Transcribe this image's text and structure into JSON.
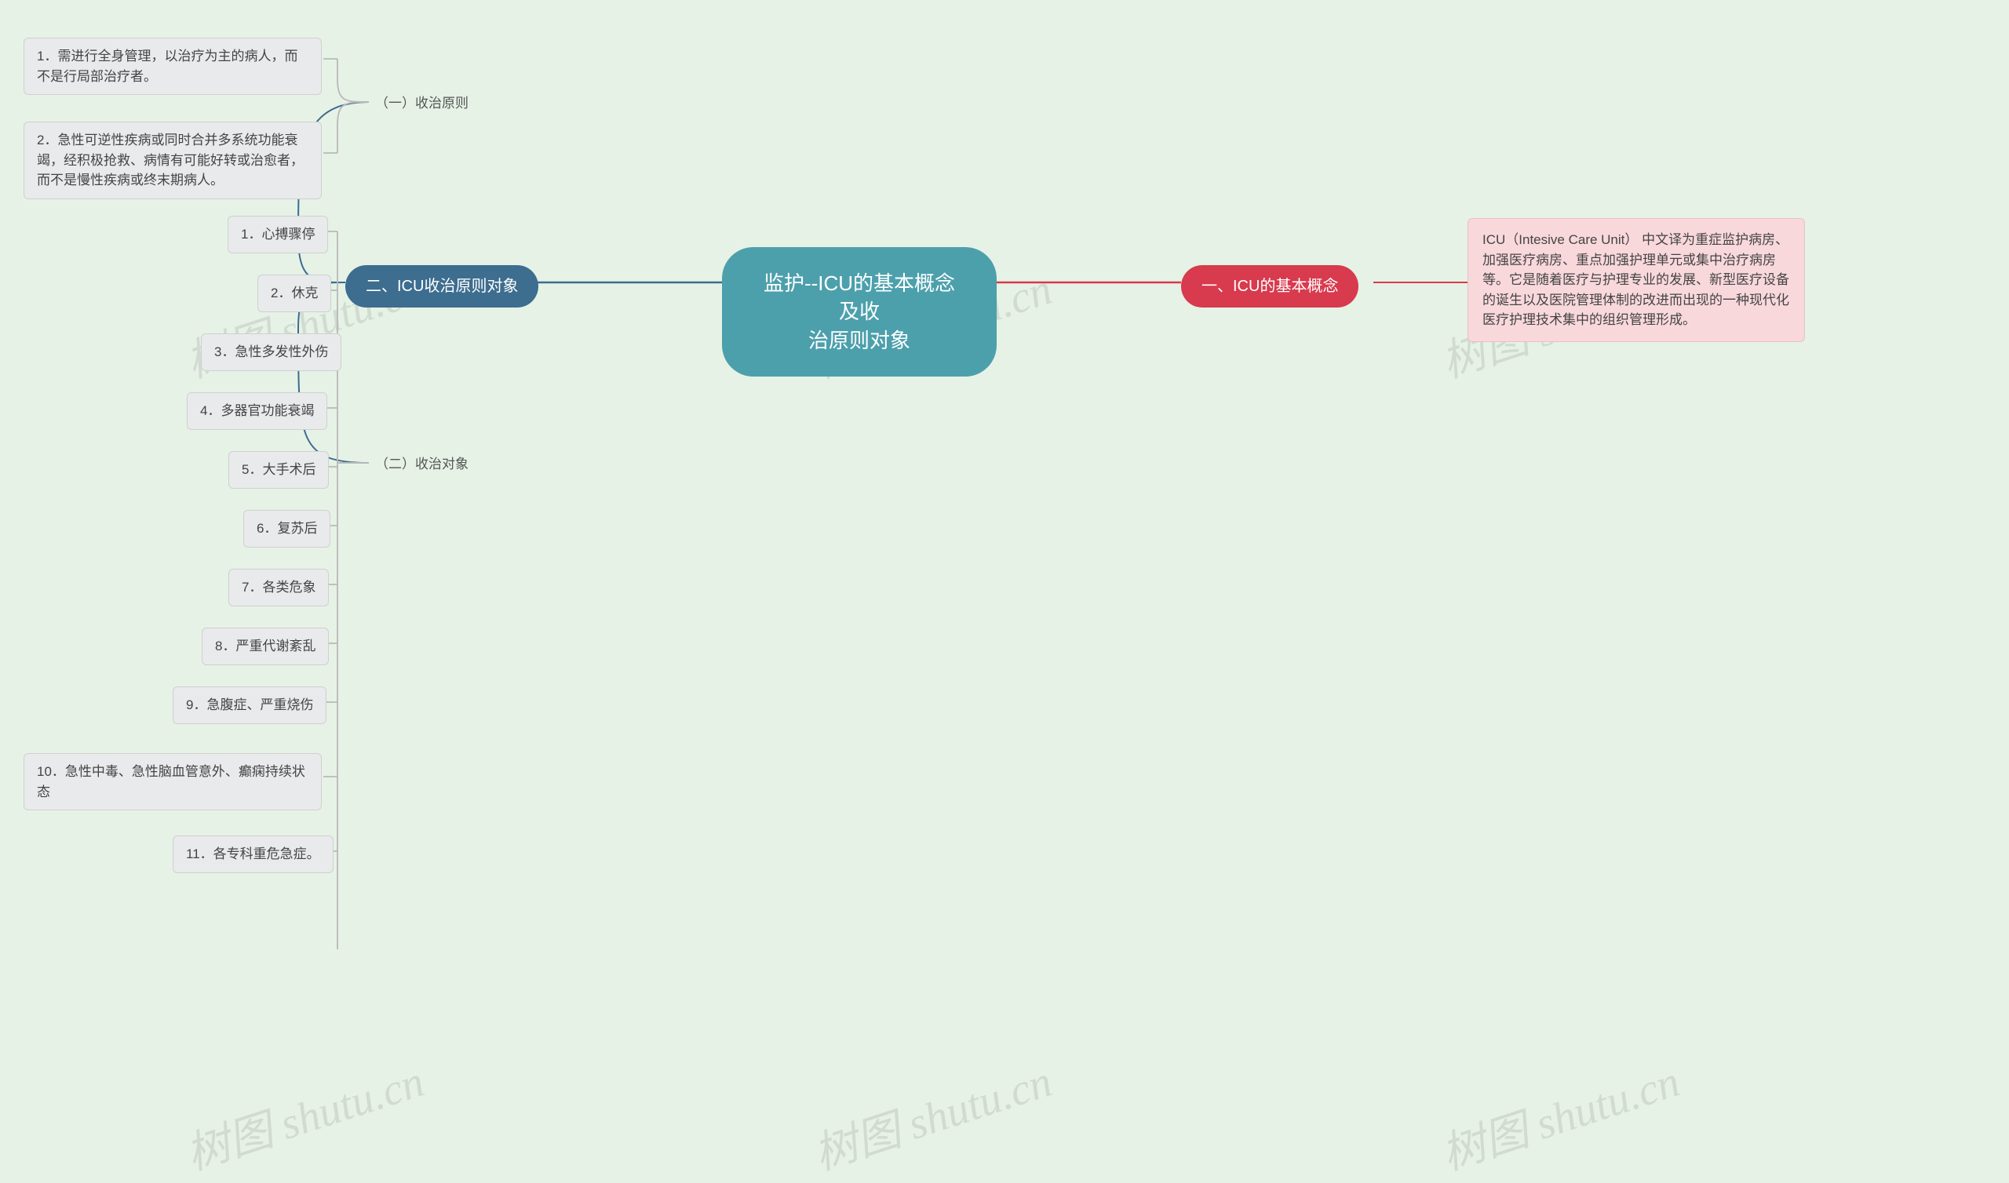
{
  "background_color": "#e6f2e6",
  "watermark_text": "树图 shutu.cn",
  "central": {
    "text": "监护--ICU的基本概念及收\n治原则对象",
    "bg": "#4ca0ac",
    "fg": "#ffffff"
  },
  "right_branch": {
    "label": "一、ICU的基本概念",
    "bg": "#d83a4e",
    "fg": "#ffffff",
    "leaf": {
      "text": "ICU（Intesive Care Unit） 中文译为重症监护病房、加强医疗病房、重点加强护理单元或集中治疗病房等。它是随着医疗与护理专业的发展、新型医疗设备的诞生以及医院管理体制的改进而出现的一种现代化医疗护理技术集中的组织管理形成。",
      "bg": "#f9d8dc"
    }
  },
  "left_branch": {
    "label": "二、ICU收治原则对象",
    "bg": "#3d6d8f",
    "fg": "#ffffff",
    "sub1": {
      "label": "（一）收治原则",
      "leaves": [
        "1．需进行全身管理，以治疗为主的病人，而不是行局部治疗者。",
        "2．急性可逆性疾病或同时合并多系统功能衰竭，经积极抢救、病情有可能好转或治愈者，而不是慢性疾病或终末期病人。"
      ]
    },
    "sub2": {
      "label": "（二）收治对象",
      "leaves": [
        "1．心搏骤停",
        "2．休克",
        "3．急性多发性外伤",
        "4．多器官功能衰竭",
        "5．大手术后",
        "6．复苏后",
        "7．各类危象",
        "8．严重代谢紊乱",
        "9．急腹症、严重烧伤",
        "10．急性中毒、急性脑血管意外、癫痫持续状态",
        "11．各专科重危急症。"
      ]
    }
  },
  "colors": {
    "connector_blue": "#3d6d8f",
    "connector_red": "#d83a4e",
    "connector_gray": "#b8b8b8",
    "leaf_bg": "#e9eaec",
    "leaf_border": "#d0d0d0"
  }
}
